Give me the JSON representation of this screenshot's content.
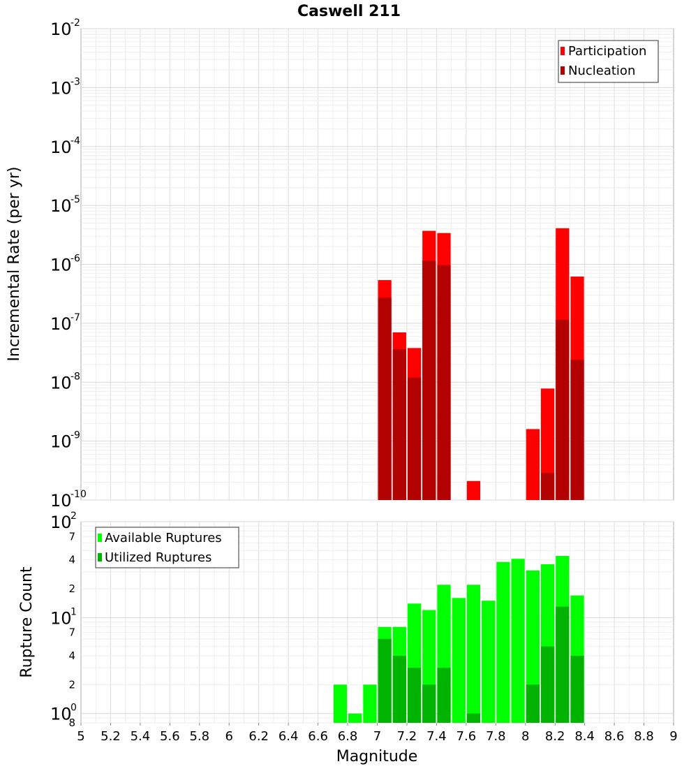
{
  "chart_data": [
    {
      "type": "bar",
      "title": "Caswell 211",
      "xlabel": "",
      "ylabel": "Incremental Rate (per yr)",
      "y_scale": "log",
      "ylim": [
        1e-10,
        0.01
      ],
      "xlim": [
        5,
        9
      ],
      "bar_width": 0.1,
      "grid": true,
      "legend_position": "top-right",
      "y_ticks": [
        {
          "base": "10",
          "exp": "-2",
          "value": 0.01
        },
        {
          "base": "10",
          "exp": "-3",
          "value": 0.001
        },
        {
          "base": "10",
          "exp": "-4",
          "value": 0.0001
        },
        {
          "base": "10",
          "exp": "-5",
          "value": 1e-05
        },
        {
          "base": "10",
          "exp": "-6",
          "value": 1e-06
        },
        {
          "base": "10",
          "exp": "-7",
          "value": 1e-07
        },
        {
          "base": "10",
          "exp": "-8",
          "value": 1e-08
        },
        {
          "base": "10",
          "exp": "-9",
          "value": 1e-09
        },
        {
          "base": "10",
          "exp": "-10",
          "value": 1e-10
        }
      ],
      "series": [
        {
          "name": "Participation",
          "color": "#ff0000",
          "points": [
            {
              "x": 7.05,
              "y": 5.4e-07
            },
            {
              "x": 7.15,
              "y": 7e-08
            },
            {
              "x": 7.25,
              "y": 3.8e-08
            },
            {
              "x": 7.35,
              "y": 3.7e-06
            },
            {
              "x": 7.45,
              "y": 3.4e-06
            },
            {
              "x": 7.65,
              "y": 2.1e-10
            },
            {
              "x": 8.05,
              "y": 1.6e-09
            },
            {
              "x": 8.15,
              "y": 7.8e-09
            },
            {
              "x": 8.25,
              "y": 4.1e-06
            },
            {
              "x": 8.35,
              "y": 6.2e-07
            }
          ]
        },
        {
          "name": "Nucleation",
          "color": "#b30000",
          "points": [
            {
              "x": 7.05,
              "y": 2.7e-07
            },
            {
              "x": 7.15,
              "y": 3.6e-08
            },
            {
              "x": 7.25,
              "y": 1.2e-08
            },
            {
              "x": 7.35,
              "y": 1.15e-06
            },
            {
              "x": 7.45,
              "y": 9.7e-07
            },
            {
              "x": 8.15,
              "y": 2.9e-10
            },
            {
              "x": 8.25,
              "y": 1.15e-07
            },
            {
              "x": 8.35,
              "y": 2.4e-08
            }
          ]
        }
      ]
    },
    {
      "type": "bar",
      "title": "",
      "xlabel": "Magnitude",
      "ylabel": "Rupture Count",
      "y_scale": "log",
      "ylim": [
        0.8,
        100
      ],
      "xlim": [
        5,
        9
      ],
      "bar_width": 0.1,
      "grid": true,
      "legend_position": "top-left",
      "x_ticks": [
        "5",
        "5.2",
        "5.4",
        "5.6",
        "5.8",
        "6",
        "6.2",
        "6.4",
        "6.6",
        "6.8",
        "7",
        "7.2",
        "7.4",
        "7.6",
        "7.8",
        "8",
        "8.2",
        "8.4",
        "8.6",
        "8.8",
        "9"
      ],
      "y_major_ticks": [
        {
          "base": "10",
          "exp": "2",
          "value": 100
        },
        {
          "base": "10",
          "exp": "1",
          "value": 10
        },
        {
          "base": "10",
          "exp": "0",
          "value": 1
        }
      ],
      "y_minor_ticks": [
        {
          "label": "7",
          "value": 70
        },
        {
          "label": "4",
          "value": 40
        },
        {
          "label": "2",
          "value": 20
        },
        {
          "label": "7",
          "value": 7
        },
        {
          "label": "4",
          "value": 4
        },
        {
          "label": "2",
          "value": 2
        },
        {
          "label": "8",
          "value": 0.8
        }
      ],
      "series": [
        {
          "name": "Available Ruptures",
          "color": "#00ff00",
          "points": [
            {
              "x": 6.75,
              "y": 2
            },
            {
              "x": 6.85,
              "y": 1
            },
            {
              "x": 6.95,
              "y": 2
            },
            {
              "x": 7.05,
              "y": 8
            },
            {
              "x": 7.15,
              "y": 8
            },
            {
              "x": 7.25,
              "y": 14
            },
            {
              "x": 7.35,
              "y": 12
            },
            {
              "x": 7.45,
              "y": 22
            },
            {
              "x": 7.55,
              "y": 16
            },
            {
              "x": 7.65,
              "y": 22
            },
            {
              "x": 7.75,
              "y": 15
            },
            {
              "x": 7.85,
              "y": 38
            },
            {
              "x": 7.95,
              "y": 41
            },
            {
              "x": 8.05,
              "y": 31
            },
            {
              "x": 8.15,
              "y": 36
            },
            {
              "x": 8.25,
              "y": 44
            },
            {
              "x": 8.35,
              "y": 17
            }
          ]
        },
        {
          "name": "Utilized Ruptures",
          "color": "#00b300",
          "points": [
            {
              "x": 7.05,
              "y": 6
            },
            {
              "x": 7.15,
              "y": 4
            },
            {
              "x": 7.25,
              "y": 3
            },
            {
              "x": 7.35,
              "y": 2
            },
            {
              "x": 7.45,
              "y": 3
            },
            {
              "x": 7.65,
              "y": 1
            },
            {
              "x": 8.05,
              "y": 2
            },
            {
              "x": 8.15,
              "y": 5
            },
            {
              "x": 8.25,
              "y": 13
            },
            {
              "x": 8.35,
              "y": 4
            }
          ]
        }
      ]
    }
  ]
}
